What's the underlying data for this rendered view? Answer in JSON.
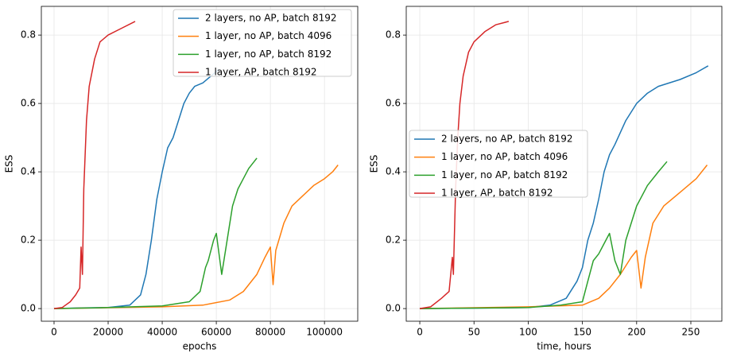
{
  "chart_data": [
    {
      "type": "line",
      "xlabel": "epochs",
      "ylabel": "ESS",
      "xlim": [
        -4700,
        112300
      ],
      "ylim": [
        -0.037,
        0.884
      ],
      "xticks": [
        0,
        20000,
        40000,
        60000,
        80000,
        100000
      ],
      "yticks": [
        {
          "value": 0,
          "label": "0.0"
        },
        {
          "value": 0.2,
          "label": "0.2"
        },
        {
          "value": 0.4,
          "label": "0.4"
        },
        {
          "value": 0.6,
          "label": "0.6"
        },
        {
          "value": 0.8,
          "label": "0.8"
        }
      ],
      "grid": true,
      "legend": "upper right",
      "series": [
        {
          "name": "2 layers, no AP, batch 8192",
          "color": "#1f77b4",
          "x": [
            0,
            10000,
            20000,
            28000,
            32000,
            34000,
            36000,
            38000,
            40000,
            42000,
            44000,
            46000,
            48000,
            50000,
            52000,
            55000,
            58000,
            61000
          ],
          "values": [
            0,
            0.002,
            0.003,
            0.01,
            0.04,
            0.1,
            0.2,
            0.32,
            0.4,
            0.47,
            0.5,
            0.55,
            0.6,
            0.63,
            0.65,
            0.66,
            0.68,
            0.7
          ]
        },
        {
          "name": "1 layer, no AP, batch 4096",
          "color": "#ff7f0e",
          "x": [
            0,
            40000,
            55000,
            65000,
            70000,
            75000,
            78000,
            80000,
            81000,
            82000,
            85000,
            88000,
            92000,
            96000,
            100000,
            103000,
            105000
          ],
          "values": [
            0,
            0.005,
            0.01,
            0.025,
            0.05,
            0.1,
            0.15,
            0.18,
            0.07,
            0.17,
            0.25,
            0.3,
            0.33,
            0.36,
            0.38,
            0.4,
            0.42
          ]
        },
        {
          "name": "1 layer, no AP, batch 8192",
          "color": "#2ca02c",
          "x": [
            0,
            20000,
            40000,
            50000,
            54000,
            56000,
            57000,
            59000,
            60000,
            61000,
            62000,
            64000,
            66000,
            68000,
            70000,
            72000,
            74000,
            75000
          ],
          "values": [
            0,
            0.003,
            0.008,
            0.02,
            0.05,
            0.12,
            0.14,
            0.2,
            0.22,
            0.16,
            0.1,
            0.2,
            0.3,
            0.35,
            0.38,
            0.41,
            0.43,
            0.44
          ]
        },
        {
          "name": "1 layer, AP, batch 8192",
          "color": "#d62728",
          "x": [
            0,
            3000,
            6000,
            8000,
            9500,
            10000,
            10500,
            11000,
            12000,
            13000,
            15000,
            17000,
            20000,
            25000,
            30000
          ],
          "values": [
            0,
            0.003,
            0.02,
            0.04,
            0.06,
            0.18,
            0.1,
            0.35,
            0.55,
            0.65,
            0.73,
            0.78,
            0.8,
            0.82,
            0.84
          ]
        }
      ]
    },
    {
      "type": "line",
      "xlabel": "time, hours",
      "ylabel": "ESS",
      "xlim": [
        -12.5,
        278.6
      ],
      "ylim": [
        -0.037,
        0.884
      ],
      "xticks": [
        0,
        50,
        100,
        150,
        200,
        250
      ],
      "yticks": [
        {
          "value": 0,
          "label": "0.0"
        },
        {
          "value": 0.2,
          "label": "0.2"
        },
        {
          "value": 0.4,
          "label": "0.4"
        },
        {
          "value": 0.6,
          "label": "0.6"
        },
        {
          "value": 0.8,
          "label": "0.8"
        }
      ],
      "grid": true,
      "legend": "center left",
      "series": [
        {
          "name": "2 layers, no AP, batch 8192",
          "color": "#1f77b4",
          "x": [
            0,
            100,
            120,
            135,
            145,
            150,
            155,
            160,
            165,
            170,
            175,
            180,
            190,
            200,
            210,
            220,
            240,
            255,
            266
          ],
          "values": [
            0,
            0.003,
            0.01,
            0.03,
            0.08,
            0.12,
            0.2,
            0.25,
            0.32,
            0.4,
            0.45,
            0.48,
            0.55,
            0.6,
            0.63,
            0.65,
            0.67,
            0.69,
            0.71
          ]
        },
        {
          "name": "1 layer, no AP, batch 4096",
          "color": "#ff7f0e",
          "x": [
            0,
            100,
            150,
            165,
            175,
            185,
            195,
            200,
            204,
            208,
            215,
            225,
            240,
            255,
            265
          ],
          "values": [
            0,
            0.005,
            0.01,
            0.03,
            0.06,
            0.1,
            0.15,
            0.17,
            0.06,
            0.15,
            0.25,
            0.3,
            0.34,
            0.38,
            0.42
          ]
        },
        {
          "name": "1 layer, no AP, batch 8192",
          "color": "#2ca02c",
          "x": [
            0,
            100,
            130,
            150,
            155,
            160,
            165,
            170,
            175,
            180,
            185,
            190,
            200,
            210,
            220,
            228
          ],
          "values": [
            0,
            0.003,
            0.01,
            0.02,
            0.08,
            0.14,
            0.16,
            0.19,
            0.22,
            0.14,
            0.1,
            0.2,
            0.3,
            0.36,
            0.4,
            0.43
          ]
        },
        {
          "name": "1 layer, AP, batch 8192",
          "color": "#d62728",
          "x": [
            0,
            10,
            20,
            27,
            30,
            31,
            33,
            35,
            37,
            40,
            45,
            50,
            60,
            70,
            82
          ],
          "values": [
            0,
            0.005,
            0.03,
            0.05,
            0.15,
            0.1,
            0.35,
            0.5,
            0.6,
            0.68,
            0.75,
            0.78,
            0.81,
            0.83,
            0.84
          ]
        }
      ]
    }
  ]
}
